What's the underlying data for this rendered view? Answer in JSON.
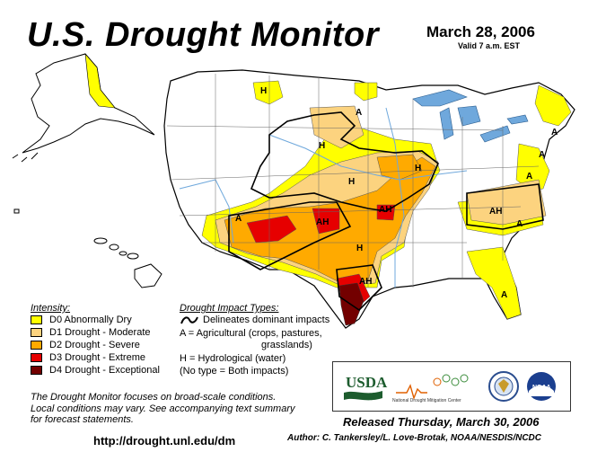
{
  "header": {
    "title": "U.S. Drought Monitor",
    "date": "March 28, 2006",
    "valid": "Valid 7 a.m. EST"
  },
  "legend": {
    "intensity_heading": "Intensity:",
    "items": [
      {
        "label": "D0 Abnormally Dry",
        "color": "#ffff00"
      },
      {
        "label": "D1 Drought - Moderate",
        "color": "#fcd37f"
      },
      {
        "label": "D2 Drought - Severe",
        "color": "#ffaa00"
      },
      {
        "label": "D3 Drought - Extreme",
        "color": "#e60000"
      },
      {
        "label": "D4 Drought - Exceptional",
        "color": "#730000"
      }
    ],
    "impact_heading": "Drought Impact Types:",
    "impact_lines": [
      "Delineates dominant impacts",
      "A = Agricultural (crops, pastures,",
      "grasslands)",
      "H = Hydrological (water)",
      "(No type = Both impacts)"
    ]
  },
  "map_labels": {
    "impact_letters": [
      "H",
      "A",
      "H",
      "H",
      "H",
      "A",
      "AH",
      "AH",
      "H",
      "AH",
      "A",
      "AH",
      "A",
      "A",
      "A",
      "A"
    ]
  },
  "footer": {
    "note_lines": [
      "The Drought Monitor focuses on broad-scale conditions.",
      "Local conditions may vary.  See accompanying text summary",
      "for forecast statements."
    ],
    "url": "http://drought.unl.edu/dm",
    "released": "Released Thursday, March 30, 2006",
    "author": "Author:  C. Tankersley/L. Love-Brotak, NOAA/NESDIS/NCDC"
  },
  "logos": {
    "usda": "USDA",
    "ndmc": "National Drought Mitigation Center",
    "noaa": "NOAA"
  },
  "colors": {
    "d0": "#ffff00",
    "d1": "#fcd37f",
    "d2": "#ffaa00",
    "d3": "#e60000",
    "d4": "#730000",
    "water": "#6fa8dc",
    "border": "#000000"
  }
}
